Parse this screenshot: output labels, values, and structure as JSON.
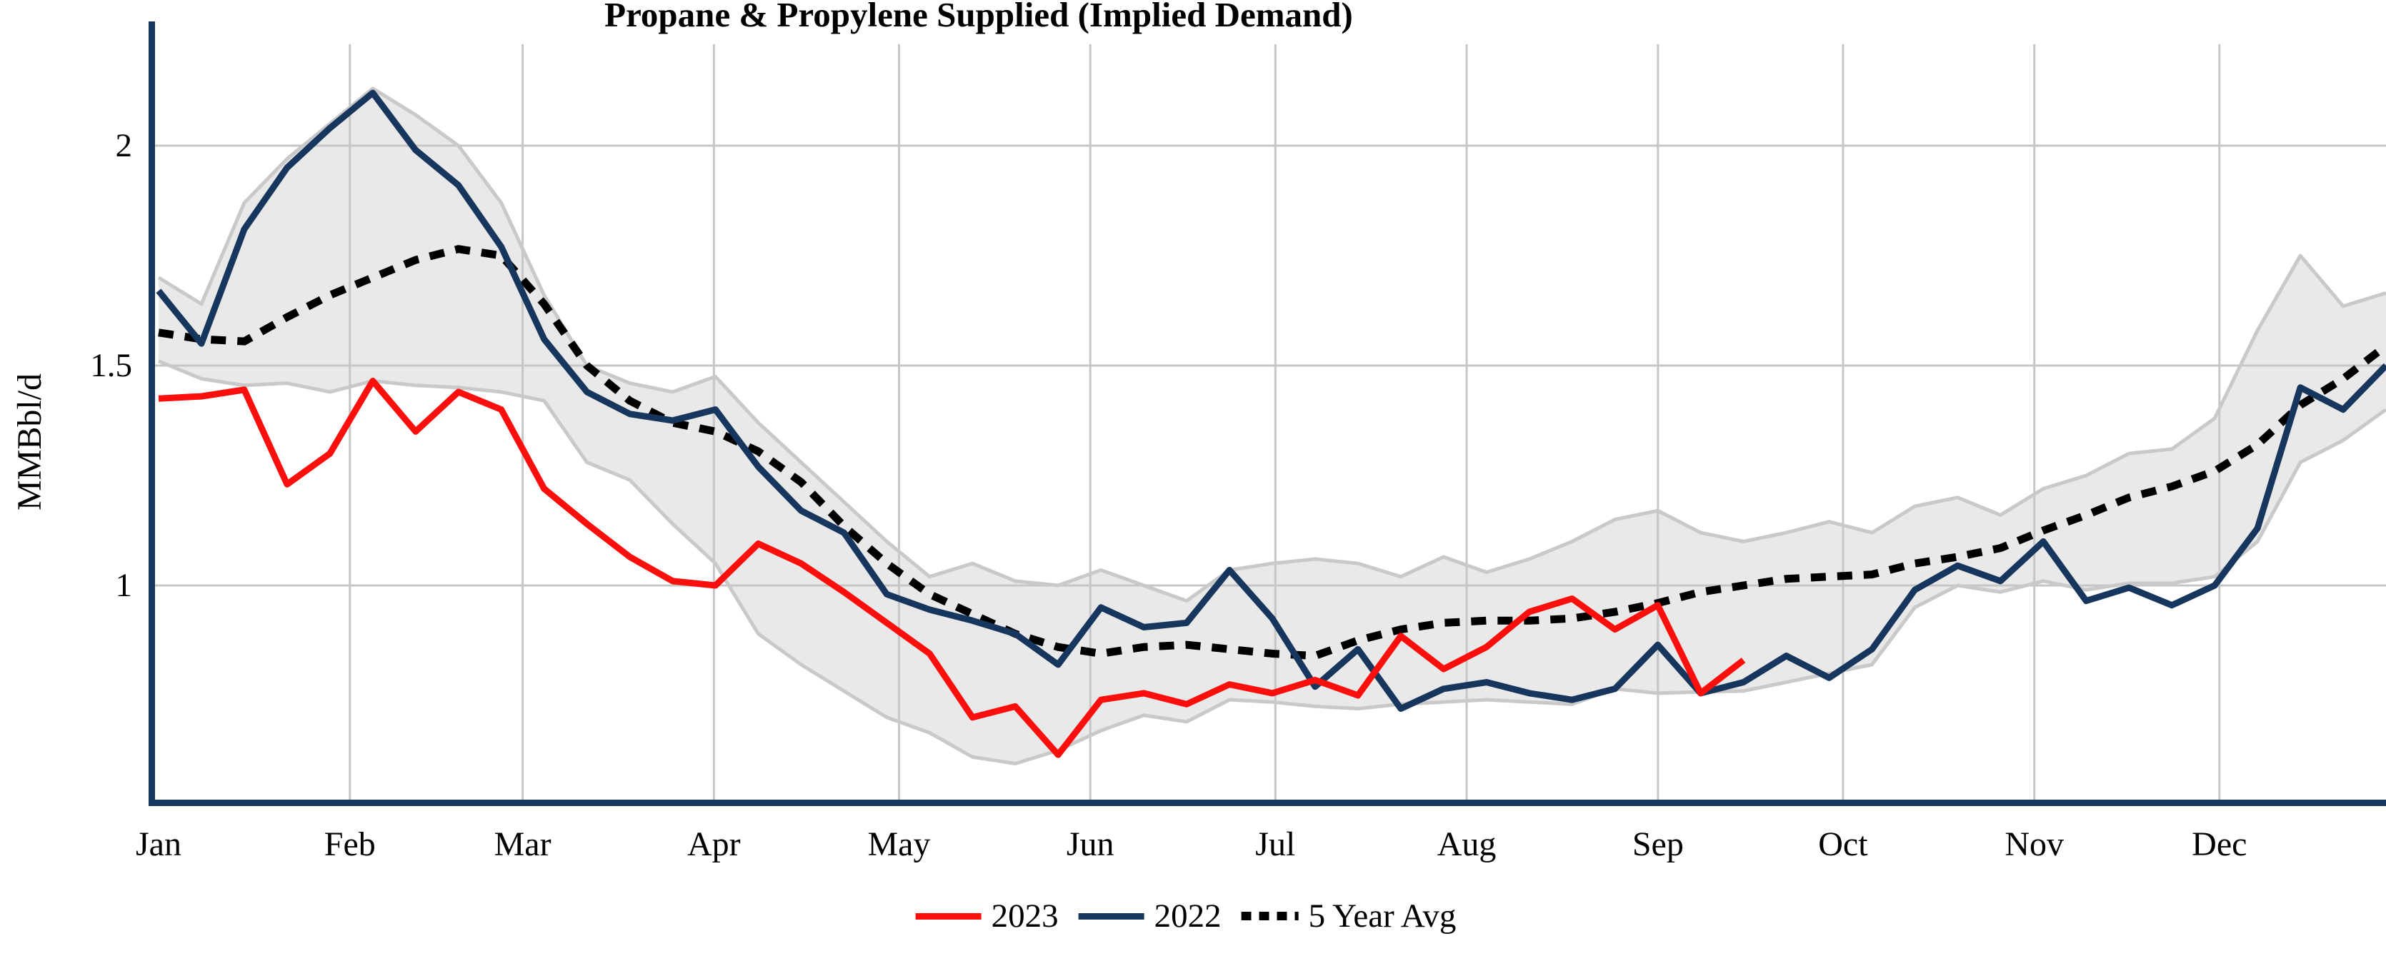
{
  "title": "Propane & Propylene Supplied (Implied Demand)",
  "y_axis": {
    "label": "MMBbl/d",
    "ticks": [
      {
        "label": "2",
        "value": 2.0
      },
      {
        "label": "1.5",
        "value": 1.5
      },
      {
        "label": "1",
        "value": 1.0
      }
    ]
  },
  "x_axis": {
    "months": [
      {
        "label": "Jan",
        "day": 1
      },
      {
        "label": "Feb",
        "day": 32
      },
      {
        "label": "Mar",
        "day": 60
      },
      {
        "label": "Apr",
        "day": 91
      },
      {
        "label": "May",
        "day": 121
      },
      {
        "label": "Jun",
        "day": 152
      },
      {
        "label": "Jul",
        "day": 182
      },
      {
        "label": "Aug",
        "day": 213
      },
      {
        "label": "Sep",
        "day": 244
      },
      {
        "label": "Oct",
        "day": 274
      },
      {
        "label": "Nov",
        "day": 305
      },
      {
        "label": "Dec",
        "day": 335
      }
    ]
  },
  "legend": {
    "items": [
      {
        "label": "2023",
        "style": "solid",
        "color": "#FA0F0C"
      },
      {
        "label": "2022",
        "style": "solid",
        "color": "#17365D"
      },
      {
        "label": "5 Year Avg",
        "style": "dotted",
        "color": "#000000"
      }
    ]
  },
  "colors": {
    "line_2023": "#FA0F0C",
    "line_2022": "#17365D",
    "line_avg": "#000000",
    "band_fill": "#E9E9E9",
    "band_edge": "#C9C9C9",
    "gridline": "#C6C6C6",
    "axis": "#17365D"
  },
  "chart_data": {
    "type": "line",
    "title": "Propane & Propylene Supplied (Implied Demand)",
    "ylabel": "MMBbl/d",
    "unit": "MMBbl/d",
    "ylim": [
      0.5,
      2.27
    ],
    "grid": "on",
    "legend_position": "bottom-center",
    "x_mode": "weekly, Jan through late Dec; 2023 series ends mid-September",
    "band_name": "5-year range",
    "series": [
      {
        "name": "2023",
        "values": [
          1.425,
          1.43,
          1.445,
          1.23,
          1.3,
          1.465,
          1.35,
          1.44,
          1.4,
          1.22,
          1.14,
          1.065,
          1.01,
          1.0,
          1.095,
          1.05,
          0.985,
          0.915,
          0.845,
          0.7,
          0.725,
          0.615,
          0.74,
          0.755,
          0.73,
          0.775,
          0.755,
          0.785,
          0.75,
          0.885,
          0.81,
          0.86,
          0.94,
          0.97,
          0.9,
          0.955,
          0.755,
          0.83
        ]
      },
      {
        "name": "2022",
        "values": [
          1.67,
          1.55,
          1.81,
          1.95,
          2.04,
          2.12,
          1.99,
          1.91,
          1.77,
          1.56,
          1.44,
          1.39,
          1.375,
          1.4,
          1.27,
          1.17,
          1.12,
          0.98,
          0.945,
          0.92,
          0.89,
          0.82,
          0.95,
          0.905,
          0.915,
          1.035,
          0.925,
          0.77,
          0.855,
          0.72,
          0.765,
          0.78,
          0.755,
          0.74,
          0.765,
          0.865,
          0.755,
          0.78,
          0.84,
          0.79,
          0.855,
          0.99,
          1.045,
          1.01,
          1.1,
          0.965,
          0.995,
          0.955,
          1.0,
          1.13,
          1.45,
          1.4,
          1.5
        ]
      },
      {
        "name": "5 Year Avg",
        "values": [
          1.575,
          1.56,
          1.555,
          1.61,
          1.66,
          1.7,
          1.74,
          1.765,
          1.75,
          1.64,
          1.5,
          1.42,
          1.37,
          1.35,
          1.305,
          1.235,
          1.135,
          1.05,
          0.98,
          0.935,
          0.89,
          0.86,
          0.845,
          0.86,
          0.865,
          0.855,
          0.845,
          0.84,
          0.875,
          0.9,
          0.915,
          0.92,
          0.92,
          0.925,
          0.94,
          0.96,
          0.985,
          1.0,
          1.015,
          1.02,
          1.025,
          1.05,
          1.065,
          1.085,
          1.125,
          1.16,
          1.2,
          1.225,
          1.26,
          1.32,
          1.41,
          1.47,
          1.545
        ]
      },
      {
        "name": "5 Year Range Upper",
        "values": [
          1.7,
          1.64,
          1.87,
          1.97,
          2.05,
          2.13,
          2.07,
          2.0,
          1.87,
          1.66,
          1.5,
          1.46,
          1.44,
          1.475,
          1.37,
          1.28,
          1.19,
          1.1,
          1.02,
          1.05,
          1.01,
          1.0,
          1.035,
          1.0,
          0.965,
          1.035,
          1.05,
          1.06,
          1.05,
          1.02,
          1.065,
          1.03,
          1.06,
          1.1,
          1.15,
          1.17,
          1.12,
          1.1,
          1.12,
          1.145,
          1.12,
          1.18,
          1.2,
          1.16,
          1.22,
          1.25,
          1.3,
          1.31,
          1.38,
          1.58,
          1.75,
          1.635,
          1.665
        ]
      },
      {
        "name": "5 Year Range Lower",
        "values": [
          1.51,
          1.47,
          1.455,
          1.46,
          1.44,
          1.465,
          1.455,
          1.45,
          1.44,
          1.42,
          1.28,
          1.24,
          1.14,
          1.05,
          0.89,
          0.82,
          0.76,
          0.7,
          0.665,
          0.61,
          0.595,
          0.625,
          0.67,
          0.705,
          0.69,
          0.74,
          0.735,
          0.725,
          0.72,
          0.73,
          0.735,
          0.74,
          0.735,
          0.73,
          0.765,
          0.755,
          0.758,
          0.76,
          0.78,
          0.8,
          0.82,
          0.95,
          1.0,
          0.985,
          1.01,
          0.99,
          1.005,
          1.005,
          1.02,
          1.1,
          1.28,
          1.33,
          1.4
        ]
      }
    ]
  }
}
